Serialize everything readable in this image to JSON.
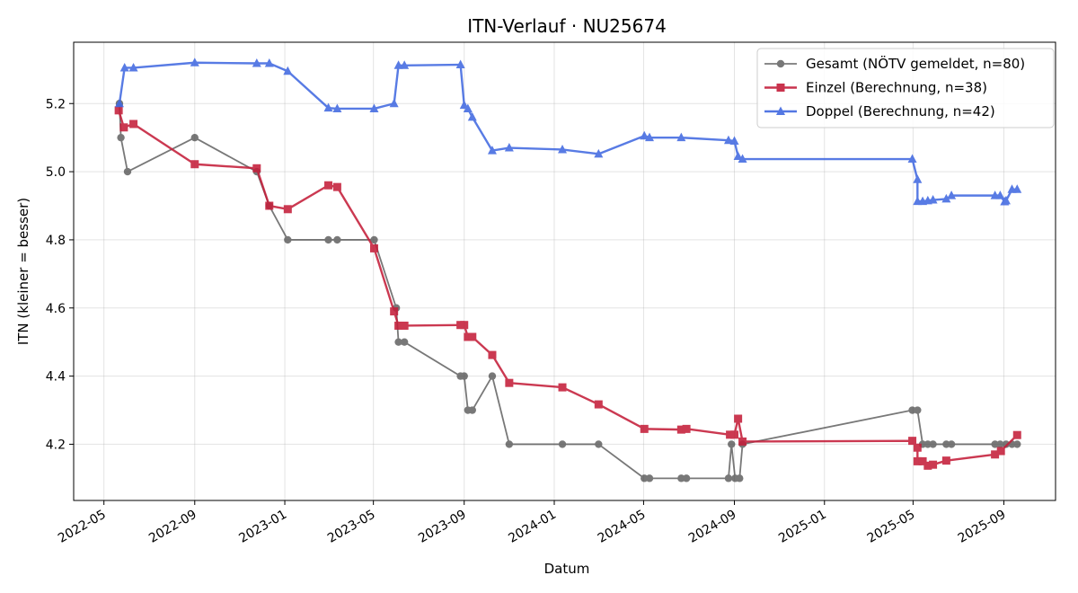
{
  "chart_data": {
    "type": "line",
    "title": "ITN-Verlauf · NU25674",
    "xlabel": "Datum",
    "ylabel": "ITN  (kleiner = besser)",
    "x_ticks": [
      "2022-05",
      "2022-09",
      "2023-01",
      "2023-05",
      "2023-09",
      "2024-01",
      "2024-05",
      "2024-09",
      "2025-01",
      "2025-05",
      "2025-09"
    ],
    "y_ticks": [
      "4.2",
      "4.4",
      "4.6",
      "4.8",
      "5.0",
      "5.2"
    ],
    "xlim": [
      "2022-03-21",
      "2025-11-10"
    ],
    "ylim": [
      4.035,
      5.38
    ],
    "grid": true,
    "legend_position": "top-right",
    "series": [
      {
        "name": "Gesamt (NÖTV gemeldet, n=80)",
        "color": "#404040",
        "marker": "circle",
        "points": [
          [
            "2022-05-22",
            5.2
          ],
          [
            "2022-05-24",
            5.1
          ],
          [
            "2022-06-02",
            5.0
          ],
          [
            "2022-09-01",
            5.1
          ],
          [
            "2022-11-24",
            5.0
          ],
          [
            "2022-12-11",
            4.9
          ],
          [
            "2023-01-05",
            4.8
          ],
          [
            "2023-03-01",
            4.8
          ],
          [
            "2023-03-13",
            4.8
          ],
          [
            "2023-05-02",
            4.8
          ],
          [
            "2023-06-01",
            4.6
          ],
          [
            "2023-06-04",
            4.5
          ],
          [
            "2023-06-12",
            4.5
          ],
          [
            "2023-08-27",
            4.4
          ],
          [
            "2023-09-01",
            4.4
          ],
          [
            "2023-09-06",
            4.3
          ],
          [
            "2023-09-12",
            4.3
          ],
          [
            "2023-10-09",
            4.4
          ],
          [
            "2023-11-01",
            4.2
          ],
          [
            "2024-01-12",
            4.2
          ],
          [
            "2024-03-01",
            4.2
          ],
          [
            "2024-05-02",
            4.1
          ],
          [
            "2024-05-09",
            4.1
          ],
          [
            "2024-06-21",
            4.1
          ],
          [
            "2024-06-28",
            4.1
          ],
          [
            "2024-08-24",
            4.1
          ],
          [
            "2024-08-28",
            4.2
          ],
          [
            "2024-09-02",
            4.1
          ],
          [
            "2024-09-08",
            4.1
          ],
          [
            "2024-09-12",
            4.2
          ],
          [
            "2025-04-30",
            4.3
          ],
          [
            "2025-05-07",
            4.3
          ],
          [
            "2025-05-14",
            4.2
          ],
          [
            "2025-05-21",
            4.2
          ],
          [
            "2025-05-28",
            4.2
          ],
          [
            "2025-06-15",
            4.2
          ],
          [
            "2025-06-22",
            4.2
          ],
          [
            "2025-08-20",
            4.2
          ],
          [
            "2025-08-27",
            4.2
          ],
          [
            "2025-09-04",
            4.2
          ],
          [
            "2025-09-12",
            4.2
          ],
          [
            "2025-09-19",
            4.2
          ]
        ]
      },
      {
        "name": "Einzel (Berechnung, n=38)",
        "color": "#c41e3a",
        "marker": "square",
        "points": [
          [
            "2022-05-21",
            5.18
          ],
          [
            "2022-05-28",
            5.13
          ],
          [
            "2022-06-10",
            5.14
          ],
          [
            "2022-09-01",
            5.022
          ],
          [
            "2022-11-24",
            5.01
          ],
          [
            "2022-12-11",
            4.9
          ],
          [
            "2023-01-05",
            4.89
          ],
          [
            "2023-03-01",
            4.96
          ],
          [
            "2023-03-13",
            4.955
          ],
          [
            "2023-05-02",
            4.775
          ],
          [
            "2023-05-29",
            4.59
          ],
          [
            "2023-06-04",
            4.548
          ],
          [
            "2023-06-12",
            4.548
          ],
          [
            "2023-08-27",
            4.55
          ],
          [
            "2023-09-01",
            4.55
          ],
          [
            "2023-09-06",
            4.515
          ],
          [
            "2023-09-12",
            4.515
          ],
          [
            "2023-10-09",
            4.462
          ],
          [
            "2023-11-01",
            4.38
          ],
          [
            "2024-01-12",
            4.367
          ],
          [
            "2024-03-01",
            4.317
          ],
          [
            "2024-05-02",
            4.245
          ],
          [
            "2024-06-21",
            4.243
          ],
          [
            "2024-06-28",
            4.245
          ],
          [
            "2024-08-26",
            4.228
          ],
          [
            "2024-09-01",
            4.228
          ],
          [
            "2024-09-06",
            4.275
          ],
          [
            "2024-09-12",
            4.208
          ],
          [
            "2025-04-30",
            4.21
          ],
          [
            "2025-05-07",
            4.19
          ],
          [
            "2025-05-07",
            4.15
          ],
          [
            "2025-05-14",
            4.15
          ],
          [
            "2025-05-21",
            4.137
          ],
          [
            "2025-05-28",
            4.14
          ],
          [
            "2025-06-15",
            4.152
          ],
          [
            "2025-08-20",
            4.17
          ],
          [
            "2025-08-28",
            4.18
          ],
          [
            "2025-09-19",
            4.227
          ]
        ]
      },
      {
        "name": "Doppel (Berechnung, n=42)",
        "color": "#4169e1",
        "marker": "triangle",
        "points": [
          [
            "2022-05-22",
            5.2
          ],
          [
            "2022-05-29",
            5.305
          ],
          [
            "2022-06-10",
            5.305
          ],
          [
            "2022-09-01",
            5.32
          ],
          [
            "2022-11-24",
            5.318
          ],
          [
            "2022-12-11",
            5.318
          ],
          [
            "2023-01-05",
            5.295
          ],
          [
            "2023-03-01",
            5.187
          ],
          [
            "2023-03-13",
            5.185
          ],
          [
            "2023-05-02",
            5.185
          ],
          [
            "2023-05-29",
            5.2
          ],
          [
            "2023-06-04",
            5.312
          ],
          [
            "2023-06-12",
            5.312
          ],
          [
            "2023-08-27",
            5.314
          ],
          [
            "2023-09-01",
            5.195
          ],
          [
            "2023-09-06",
            5.185
          ],
          [
            "2023-09-12",
            5.16
          ],
          [
            "2023-10-09",
            5.062
          ],
          [
            "2023-11-01",
            5.07
          ],
          [
            "2024-01-12",
            5.065
          ],
          [
            "2024-03-01",
            5.052
          ],
          [
            "2024-05-02",
            5.105
          ],
          [
            "2024-05-09",
            5.1
          ],
          [
            "2024-06-21",
            5.1
          ],
          [
            "2024-08-24",
            5.092
          ],
          [
            "2024-09-01",
            5.09
          ],
          [
            "2024-09-06",
            5.045
          ],
          [
            "2024-09-12",
            5.037
          ],
          [
            "2025-04-30",
            5.037
          ],
          [
            "2025-05-07",
            4.977
          ],
          [
            "2025-05-07",
            4.913
          ],
          [
            "2025-05-14",
            4.913
          ],
          [
            "2025-05-21",
            4.915
          ],
          [
            "2025-05-28",
            4.917
          ],
          [
            "2025-06-15",
            4.92
          ],
          [
            "2025-06-22",
            4.93
          ],
          [
            "2025-08-20",
            4.93
          ],
          [
            "2025-08-27",
            4.93
          ],
          [
            "2025-09-02",
            4.912
          ],
          [
            "2025-09-04",
            4.915
          ],
          [
            "2025-09-12",
            4.948
          ],
          [
            "2025-09-19",
            4.948
          ]
        ]
      }
    ]
  }
}
